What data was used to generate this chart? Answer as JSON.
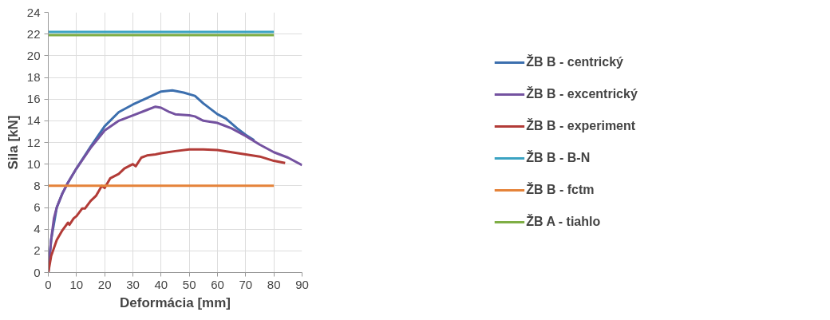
{
  "chart_data": {
    "type": "line",
    "xlabel": "Deformácia [mm]",
    "ylabel": "Sila [kN]",
    "xlim": [
      0,
      90
    ],
    "ylim": [
      0,
      24
    ],
    "xticks": [
      0,
      10,
      20,
      30,
      40,
      50,
      60,
      70,
      80,
      90
    ],
    "yticks": [
      0,
      2,
      4,
      6,
      8,
      10,
      12,
      14,
      16,
      18,
      20,
      22,
      24
    ],
    "grid": true,
    "legend": "right",
    "marker": "none",
    "line_style": "solid",
    "series": [
      {
        "name": "ŽB B - centrický",
        "color": "#3c6fae",
        "x": [
          0,
          1,
          3,
          5,
          7,
          10,
          15,
          20,
          25,
          30,
          35,
          40,
          44,
          48,
          52,
          55,
          60,
          63,
          67,
          70,
          73
        ],
        "values": [
          0,
          3,
          6,
          7.3,
          8.3,
          9.6,
          11.6,
          13.5,
          14.8,
          15.5,
          16.1,
          16.7,
          16.8,
          16.6,
          16.3,
          15.6,
          14.6,
          14.2,
          13.3,
          12.7,
          12.2
        ]
      },
      {
        "name": "ŽB B - excentrický",
        "color": "#7452a0",
        "x": [
          0,
          1,
          2,
          3,
          5,
          7,
          10,
          15,
          20,
          25,
          30,
          35,
          38,
          40,
          43,
          45,
          50,
          52,
          55,
          60,
          62,
          65,
          70,
          75,
          80,
          85,
          90
        ],
        "values": [
          0,
          3,
          5,
          6,
          7.3,
          8.3,
          9.6,
          11.5,
          13.1,
          14.0,
          14.5,
          15.0,
          15.3,
          15.2,
          14.8,
          14.6,
          14.5,
          14.4,
          14.0,
          13.8,
          13.6,
          13.3,
          12.6,
          11.8,
          11.1,
          10.6,
          9.9
        ]
      },
      {
        "name": "ŽB B - experiment",
        "color": "#b23b37",
        "x": [
          0,
          1,
          3,
          5,
          7,
          7.5,
          9,
          10,
          12,
          13,
          15,
          17,
          19,
          20,
          22,
          25,
          27,
          30,
          31,
          33,
          35,
          38,
          40,
          45,
          50,
          55,
          60,
          65,
          70,
          75,
          80,
          84
        ],
        "values": [
          0,
          1.5,
          3,
          3.9,
          4.6,
          4.4,
          5.0,
          5.2,
          5.9,
          5.9,
          6.6,
          7.1,
          8.0,
          7.8,
          8.7,
          9.1,
          9.6,
          10.0,
          9.8,
          10.6,
          10.8,
          10.9,
          11.0,
          11.2,
          11.35,
          11.35,
          11.3,
          11.1,
          10.9,
          10.7,
          10.3,
          10.1
        ]
      },
      {
        "name": "ŽB B - B-N",
        "color": "#3ba3c2",
        "x": [
          0,
          80
        ],
        "values": [
          22.2,
          22.2
        ]
      },
      {
        "name": "ŽB B - fctm",
        "color": "#e5833a",
        "x": [
          0,
          80
        ],
        "values": [
          8,
          8
        ]
      },
      {
        "name": "ŽB A - tiahlo",
        "color": "#7fae45",
        "x": [
          0,
          80
        ],
        "values": [
          21.9,
          21.9
        ]
      }
    ]
  }
}
